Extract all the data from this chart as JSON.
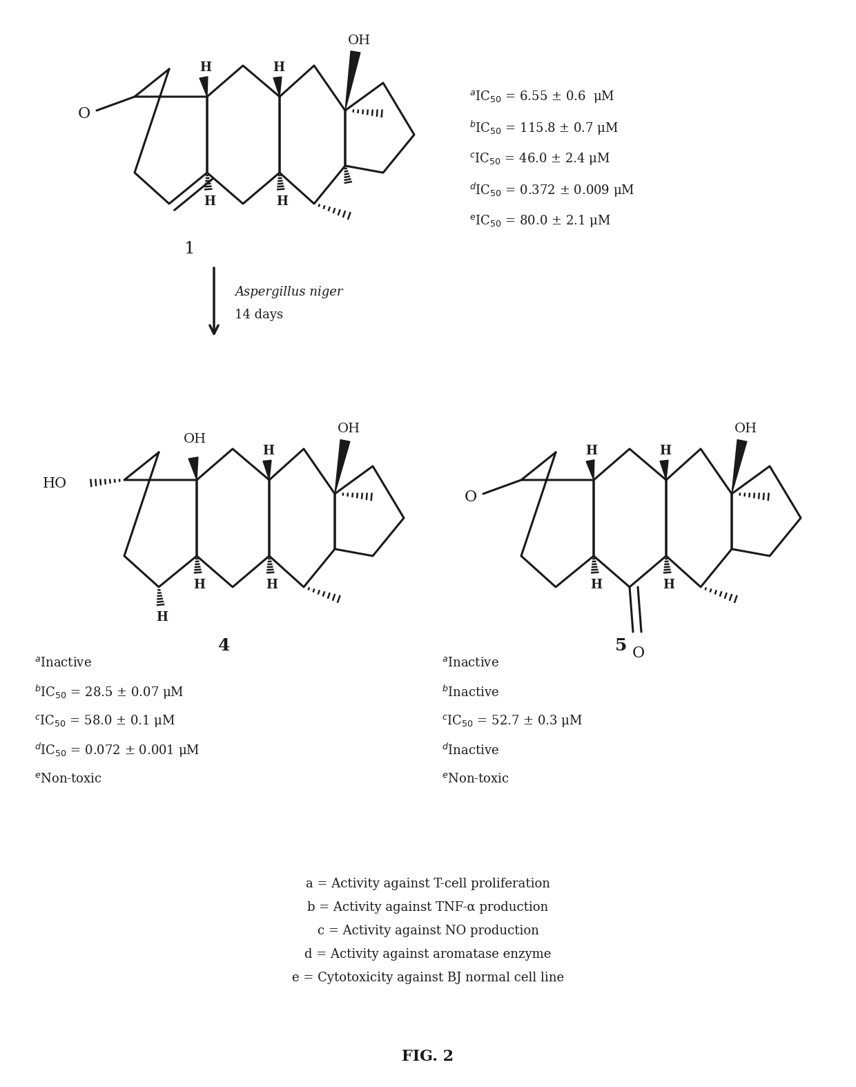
{
  "bg_color": "#ffffff",
  "fig_width": 12.4,
  "fig_height": 15.74,
  "title": "FIG. 2",
  "compound1_label": "1",
  "compound4_label": "4",
  "compound5_label": "5",
  "arrow_text_italic": "Aspergillus niger",
  "arrow_text_plain": "14 days",
  "compound1_data": [
    [
      "a",
      "IC$_{50}$ = 6.55 ± 0.6  μM"
    ],
    [
      "b",
      "IC$_{50}$ = 115.8 ± 0.7 μM"
    ],
    [
      "c",
      "IC$_{50}$ = 46.0 ± 2.4 μM"
    ],
    [
      "d",
      "IC$_{50}$ = 0.372 ± 0.009 μM"
    ],
    [
      "e",
      "IC$_{50}$ = 80.0 ± 2.1 μM"
    ]
  ],
  "compound4_data": [
    [
      "a",
      "Inactive"
    ],
    [
      "b",
      "IC$_{50}$ = 28.5 ± 0.07 μM"
    ],
    [
      "c",
      "IC$_{50}$ = 58.0 ± 0.1 μM"
    ],
    [
      "d",
      "IC$_{50}$ = 0.072 ± 0.001 μM"
    ],
    [
      "e",
      "Non-toxic"
    ]
  ],
  "compound5_data": [
    [
      "a",
      "Inactive"
    ],
    [
      "b",
      "Inactive"
    ],
    [
      "c",
      "IC$_{50}$ = 52.7 ± 0.3 μM"
    ],
    [
      "d",
      "Inactive"
    ],
    [
      "e",
      "Non-toxic"
    ]
  ],
  "legend_lines": [
    "a = Activity against T-cell proliferation",
    "b = Activity against TNF-α production",
    "c = Activity against NO production",
    "d = Activity against aromatase enzyme",
    "e = Cytotoxicity against BJ normal cell line"
  ],
  "text_color": "#1a1a1a",
  "line_color": "#1a1a1a"
}
